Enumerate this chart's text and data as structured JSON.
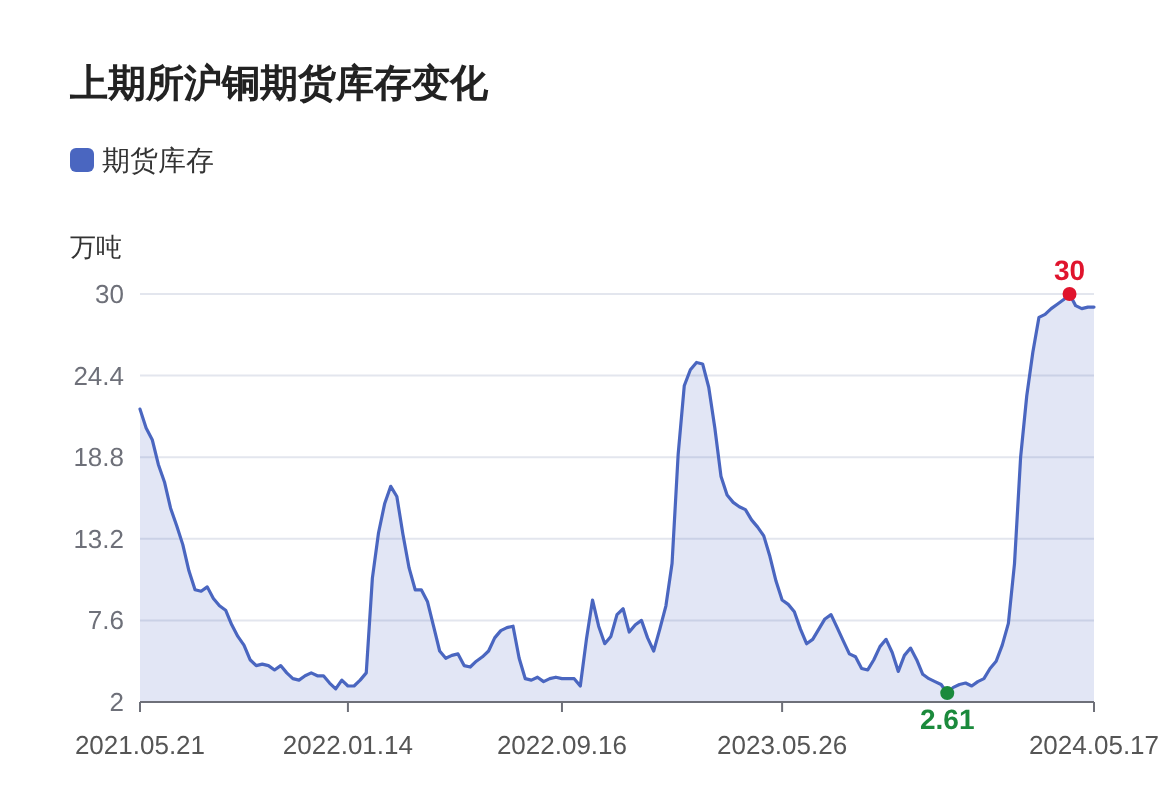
{
  "chart_data": {
    "type": "area",
    "title": "上期所沪铜期货库存变化",
    "ylabel": "万吨",
    "x": [
      "2021-05-21",
      "2021-05-28",
      "2021-06-04",
      "2021-06-11",
      "2021-06-18",
      "2021-06-25",
      "2021-07-02",
      "2021-07-09",
      "2021-07-16",
      "2021-07-23",
      "2021-07-30",
      "2021-08-06",
      "2021-08-13",
      "2021-08-20",
      "2021-08-27",
      "2021-09-03",
      "2021-09-10",
      "2021-09-17",
      "2021-09-24",
      "2021-10-01",
      "2021-10-08",
      "2021-10-15",
      "2021-10-22",
      "2021-10-29",
      "2021-11-05",
      "2021-11-12",
      "2021-11-19",
      "2021-11-26",
      "2021-12-03",
      "2021-12-10",
      "2021-12-17",
      "2021-12-24",
      "2021-12-31",
      "2022-01-07",
      "2022-01-14",
      "2022-01-21",
      "2022-01-28",
      "2022-02-04",
      "2022-02-11",
      "2022-02-18",
      "2022-02-25",
      "2022-03-04",
      "2022-03-11",
      "2022-03-18",
      "2022-03-25",
      "2022-04-01",
      "2022-04-08",
      "2022-04-15",
      "2022-04-22",
      "2022-04-29",
      "2022-05-06",
      "2022-05-13",
      "2022-05-20",
      "2022-05-27",
      "2022-06-03",
      "2022-06-10",
      "2022-06-17",
      "2022-06-24",
      "2022-07-01",
      "2022-07-08",
      "2022-07-15",
      "2022-07-22",
      "2022-07-29",
      "2022-08-05",
      "2022-08-12",
      "2022-08-19",
      "2022-08-26",
      "2022-09-02",
      "2022-09-09",
      "2022-09-16",
      "2022-09-23",
      "2022-09-30",
      "2022-10-07",
      "2022-10-14",
      "2022-10-21",
      "2022-10-28",
      "2022-11-04",
      "2022-11-11",
      "2022-11-18",
      "2022-11-25",
      "2022-12-02",
      "2022-12-09",
      "2022-12-16",
      "2022-12-23",
      "2022-12-30",
      "2023-01-06",
      "2023-01-13",
      "2023-01-20",
      "2023-01-27",
      "2023-02-03",
      "2023-02-10",
      "2023-02-17",
      "2023-02-24",
      "2023-03-03",
      "2023-03-10",
      "2023-03-17",
      "2023-03-24",
      "2023-03-31",
      "2023-04-07",
      "2023-04-14",
      "2023-04-21",
      "2023-04-28",
      "2023-05-05",
      "2023-05-12",
      "2023-05-19",
      "2023-05-26",
      "2023-06-02",
      "2023-06-09",
      "2023-06-16",
      "2023-06-23",
      "2023-06-30",
      "2023-07-07",
      "2023-07-14",
      "2023-07-21",
      "2023-07-28",
      "2023-08-04",
      "2023-08-11",
      "2023-08-18",
      "2023-08-25",
      "2023-09-01",
      "2023-09-08",
      "2023-09-15",
      "2023-09-22",
      "2023-09-29",
      "2023-10-06",
      "2023-10-13",
      "2023-10-20",
      "2023-10-27",
      "2023-11-03",
      "2023-11-10",
      "2023-11-17",
      "2023-11-24",
      "2023-12-01",
      "2023-12-08",
      "2023-12-15",
      "2023-12-22",
      "2023-12-29",
      "2024-01-05",
      "2024-01-12",
      "2024-01-19",
      "2024-01-26",
      "2024-02-02",
      "2024-02-09",
      "2024-02-16",
      "2024-02-23",
      "2024-03-01",
      "2024-03-08",
      "2024-03-15",
      "2024-03-22",
      "2024-03-29",
      "2024-04-05",
      "2024-04-12",
      "2024-04-19",
      "2024-04-26",
      "2024-05-03",
      "2024-05-10",
      "2024-05-17"
    ],
    "series": [
      {
        "name": "期货库存",
        "color": "#4a66c0",
        "values": [
          22.1,
          20.8,
          20.0,
          18.3,
          17.1,
          15.3,
          14.1,
          12.8,
          11.0,
          9.7,
          9.6,
          9.9,
          9.1,
          8.6,
          8.3,
          7.3,
          6.5,
          5.9,
          4.9,
          4.5,
          4.6,
          4.5,
          4.2,
          4.5,
          4.0,
          3.6,
          3.5,
          3.8,
          4.0,
          3.8,
          3.8,
          3.3,
          2.9,
          3.5,
          3.1,
          3.1,
          3.5,
          4.0,
          10.5,
          13.6,
          15.6,
          16.8,
          16.1,
          13.5,
          11.2,
          9.7,
          9.7,
          8.9,
          7.2,
          5.5,
          5.0,
          5.2,
          5.3,
          4.5,
          4.4,
          4.8,
          5.1,
          5.5,
          6.4,
          6.9,
          7.1,
          7.2,
          5.0,
          3.6,
          3.5,
          3.7,
          3.4,
          3.6,
          3.7,
          3.6,
          3.6,
          3.6,
          3.1,
          6.3,
          9.0,
          7.2,
          6.0,
          6.5,
          8.0,
          8.4,
          6.8,
          7.3,
          7.6,
          6.4,
          5.5,
          7.0,
          8.6,
          11.5,
          19.0,
          23.7,
          24.8,
          25.3,
          25.2,
          23.6,
          20.8,
          17.5,
          16.2,
          15.7,
          15.4,
          15.2,
          14.5,
          14.0,
          13.4,
          12.0,
          10.3,
          9.0,
          8.7,
          8.2,
          7.0,
          6.0,
          6.3,
          7.0,
          7.7,
          8.0,
          7.1,
          6.2,
          5.3,
          5.1,
          4.3,
          4.2,
          4.9,
          5.8,
          6.3,
          5.4,
          4.1,
          5.2,
          5.7,
          4.9,
          3.9,
          3.6,
          3.4,
          3.2,
          2.61,
          3.0,
          3.2,
          3.3,
          3.1,
          3.4,
          3.6,
          4.3,
          4.8,
          5.9,
          7.4,
          11.5,
          18.8,
          23.0,
          26.0,
          28.4,
          28.6,
          29.0,
          29.3,
          29.6,
          30,
          29.2,
          29.0,
          29.1,
          29.1
        ]
      }
    ],
    "xlim": [
      "2021-05-21",
      "2024-05-17"
    ],
    "xticks": [
      {
        "value": "2021-05-21",
        "label": "2021.05.21"
      },
      {
        "value": "2022-01-14",
        "label": "2022.01.14"
      },
      {
        "value": "2022-09-16",
        "label": "2022.09.16"
      },
      {
        "value": "2023-05-26",
        "label": "2023.05.26"
      },
      {
        "value": "2024-05-17",
        "label": "2024.05.17"
      }
    ],
    "ylim": [
      2,
      30
    ],
    "yticks": [
      2,
      7.6,
      13.2,
      18.8,
      24.4,
      30
    ],
    "annotations": [
      {
        "text": "30",
        "x": "2024-04-19",
        "y": 30
      },
      {
        "text": "2.61",
        "x": "2023-12-01",
        "y": 2.61
      }
    ],
    "grid": "y",
    "legend": "top left",
    "marker": "none",
    "line_style": "solid"
  }
}
